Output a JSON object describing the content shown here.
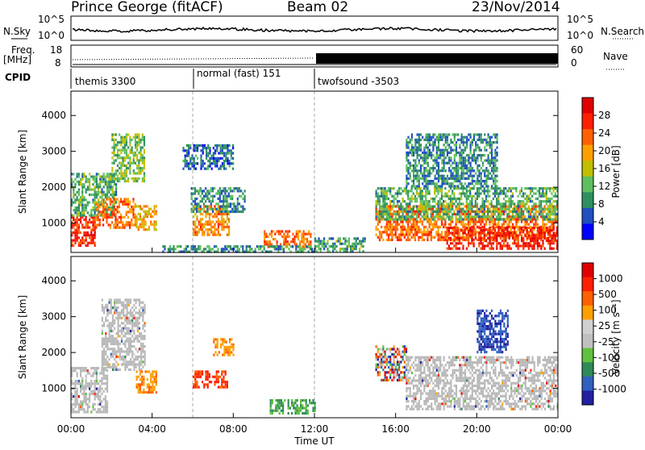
{
  "header": {
    "station": "Prince George (fitACF)",
    "beam": "Beam 02",
    "date": "23/Nov/2014"
  },
  "top_panels": {
    "nsky_label": "N.Sky",
    "nsky_ticks": [
      "10^5",
      "10^0"
    ],
    "nsearch_label": "N.Search",
    "freq_label": "Freq.",
    "freq_unit": "[MHz]",
    "freq_ticks": [
      "18",
      "8"
    ],
    "nave_label": "Nave",
    "nave_ticks": [
      "60",
      "0"
    ],
    "cpid_label": "CPID",
    "cpid_segments": [
      {
        "name": "themis 3300",
        "start_hour": 0
      },
      {
        "name": "normal (fast) 151",
        "start_hour": 6
      },
      {
        "name": "twofsound -3503",
        "start_hour": 12
      }
    ]
  },
  "colors": {
    "power": [
      "#0000ff",
      "#2050c0",
      "#2f8f5f",
      "#5fbf5f",
      "#c0c000",
      "#ffa000",
      "#ff6000",
      "#ff2000",
      "#e00000"
    ],
    "velocity": [
      "#2020a0",
      "#3060c0",
      "#2e8b57",
      "#60c040",
      "#c0c0c0",
      "#d0d0d0",
      "#ffa000",
      "#ff6000",
      "#ff2000",
      "#e00000"
    ],
    "ground_scatter": "#b8b8b8"
  },
  "chart_data": [
    {
      "type": "heatmap",
      "name": "power",
      "ylabel": "Slant Range [km]",
      "xlabel": "Time UT",
      "x_ticks": [
        "00:00",
        "04:00",
        "08:00",
        "12:00",
        "16:00",
        "20:00",
        "00:00"
      ],
      "xlim_hours": [
        0,
        24
      ],
      "ylim_km": [
        180,
        4680
      ],
      "y_ticks": [
        1000,
        2000,
        3000,
        4000
      ],
      "colorbar_label": "Power [dB]",
      "colorbar_ticks": [
        28,
        24,
        20,
        16,
        12,
        8,
        4
      ],
      "colorbar_range": [
        0,
        30
      ],
      "patches": [
        {
          "t0": 0.0,
          "t1": 1.2,
          "r0": 350,
          "r1": 1200,
          "level": 26
        },
        {
          "t0": 0.0,
          "t1": 2.2,
          "r0": 1200,
          "r1": 2400,
          "level": 10
        },
        {
          "t0": 1.2,
          "t1": 3.2,
          "r0": 900,
          "r1": 1700,
          "level": 22
        },
        {
          "t0": 2.0,
          "t1": 3.6,
          "r0": 2200,
          "r1": 3500,
          "level": 12
        },
        {
          "t0": 3.2,
          "t1": 4.2,
          "r0": 800,
          "r1": 1500,
          "level": 18
        },
        {
          "t0": 6.0,
          "t1": 7.8,
          "r0": 700,
          "r1": 1500,
          "level": 20
        },
        {
          "t0": 5.9,
          "t1": 8.6,
          "r0": 1300,
          "r1": 2000,
          "level": 7
        },
        {
          "t0": 5.5,
          "t1": 8.0,
          "r0": 2500,
          "r1": 3200,
          "level": 5
        },
        {
          "t0": 9.5,
          "t1": 11.8,
          "r0": 300,
          "r1": 800,
          "level": 22
        },
        {
          "t0": 4.5,
          "t1": 12.0,
          "r0": 200,
          "r1": 380,
          "level": 8
        },
        {
          "t0": 12.0,
          "t1": 14.5,
          "r0": 200,
          "r1": 600,
          "level": 9
        },
        {
          "t0": 15.0,
          "t1": 24.0,
          "r0": 500,
          "r1": 1500,
          "level": 22
        },
        {
          "t0": 15.0,
          "t1": 24.0,
          "r0": 1100,
          "r1": 2000,
          "level": 10
        },
        {
          "t0": 18.5,
          "t1": 24.0,
          "r0": 300,
          "r1": 900,
          "level": 27
        },
        {
          "t0": 16.5,
          "t1": 21.0,
          "r0": 2000,
          "r1": 3500,
          "level": 7
        }
      ]
    },
    {
      "type": "heatmap",
      "name": "velocity",
      "ylabel": "Slant Range [km]",
      "xlabel": "Time UT",
      "x_ticks": [
        "00:00",
        "04:00",
        "08:00",
        "12:00",
        "16:00",
        "20:00",
        "00:00"
      ],
      "xlim_hours": [
        0,
        24
      ],
      "ylim_km": [
        180,
        4680
      ],
      "y_ticks": [
        1000,
        2000,
        3000,
        4000
      ],
      "colorbar_label": "Velocity [m s⁻¹]",
      "colorbar_ticks": [
        "1000",
        "500",
        "100",
        "25",
        "-25",
        "-100",
        "-500",
        "-1000"
      ],
      "patches": [
        {
          "t0": 0.0,
          "t1": 1.8,
          "r0": 350,
          "r1": 1600,
          "kind": "ground"
        },
        {
          "t0": 1.5,
          "t1": 3.6,
          "r0": 1500,
          "r1": 3500,
          "kind": "ground"
        },
        {
          "t0": 3.2,
          "t1": 4.2,
          "r0": 900,
          "r1": 1500,
          "kind": "orange"
        },
        {
          "t0": 6.0,
          "t1": 7.7,
          "r0": 1000,
          "r1": 1500,
          "kind": "red"
        },
        {
          "t0": 7.0,
          "t1": 8.0,
          "r0": 1900,
          "r1": 2400,
          "kind": "orange"
        },
        {
          "t0": 9.8,
          "t1": 12.0,
          "r0": 280,
          "r1": 700,
          "kind": "green"
        },
        {
          "t0": 15.0,
          "t1": 16.5,
          "r0": 1200,
          "r1": 2200,
          "kind": "mixed"
        },
        {
          "t0": 16.5,
          "t1": 24.0,
          "r0": 400,
          "r1": 1900,
          "kind": "ground"
        },
        {
          "t0": 20.0,
          "t1": 21.5,
          "r0": 2000,
          "r1": 3200,
          "kind": "blue"
        }
      ]
    }
  ]
}
